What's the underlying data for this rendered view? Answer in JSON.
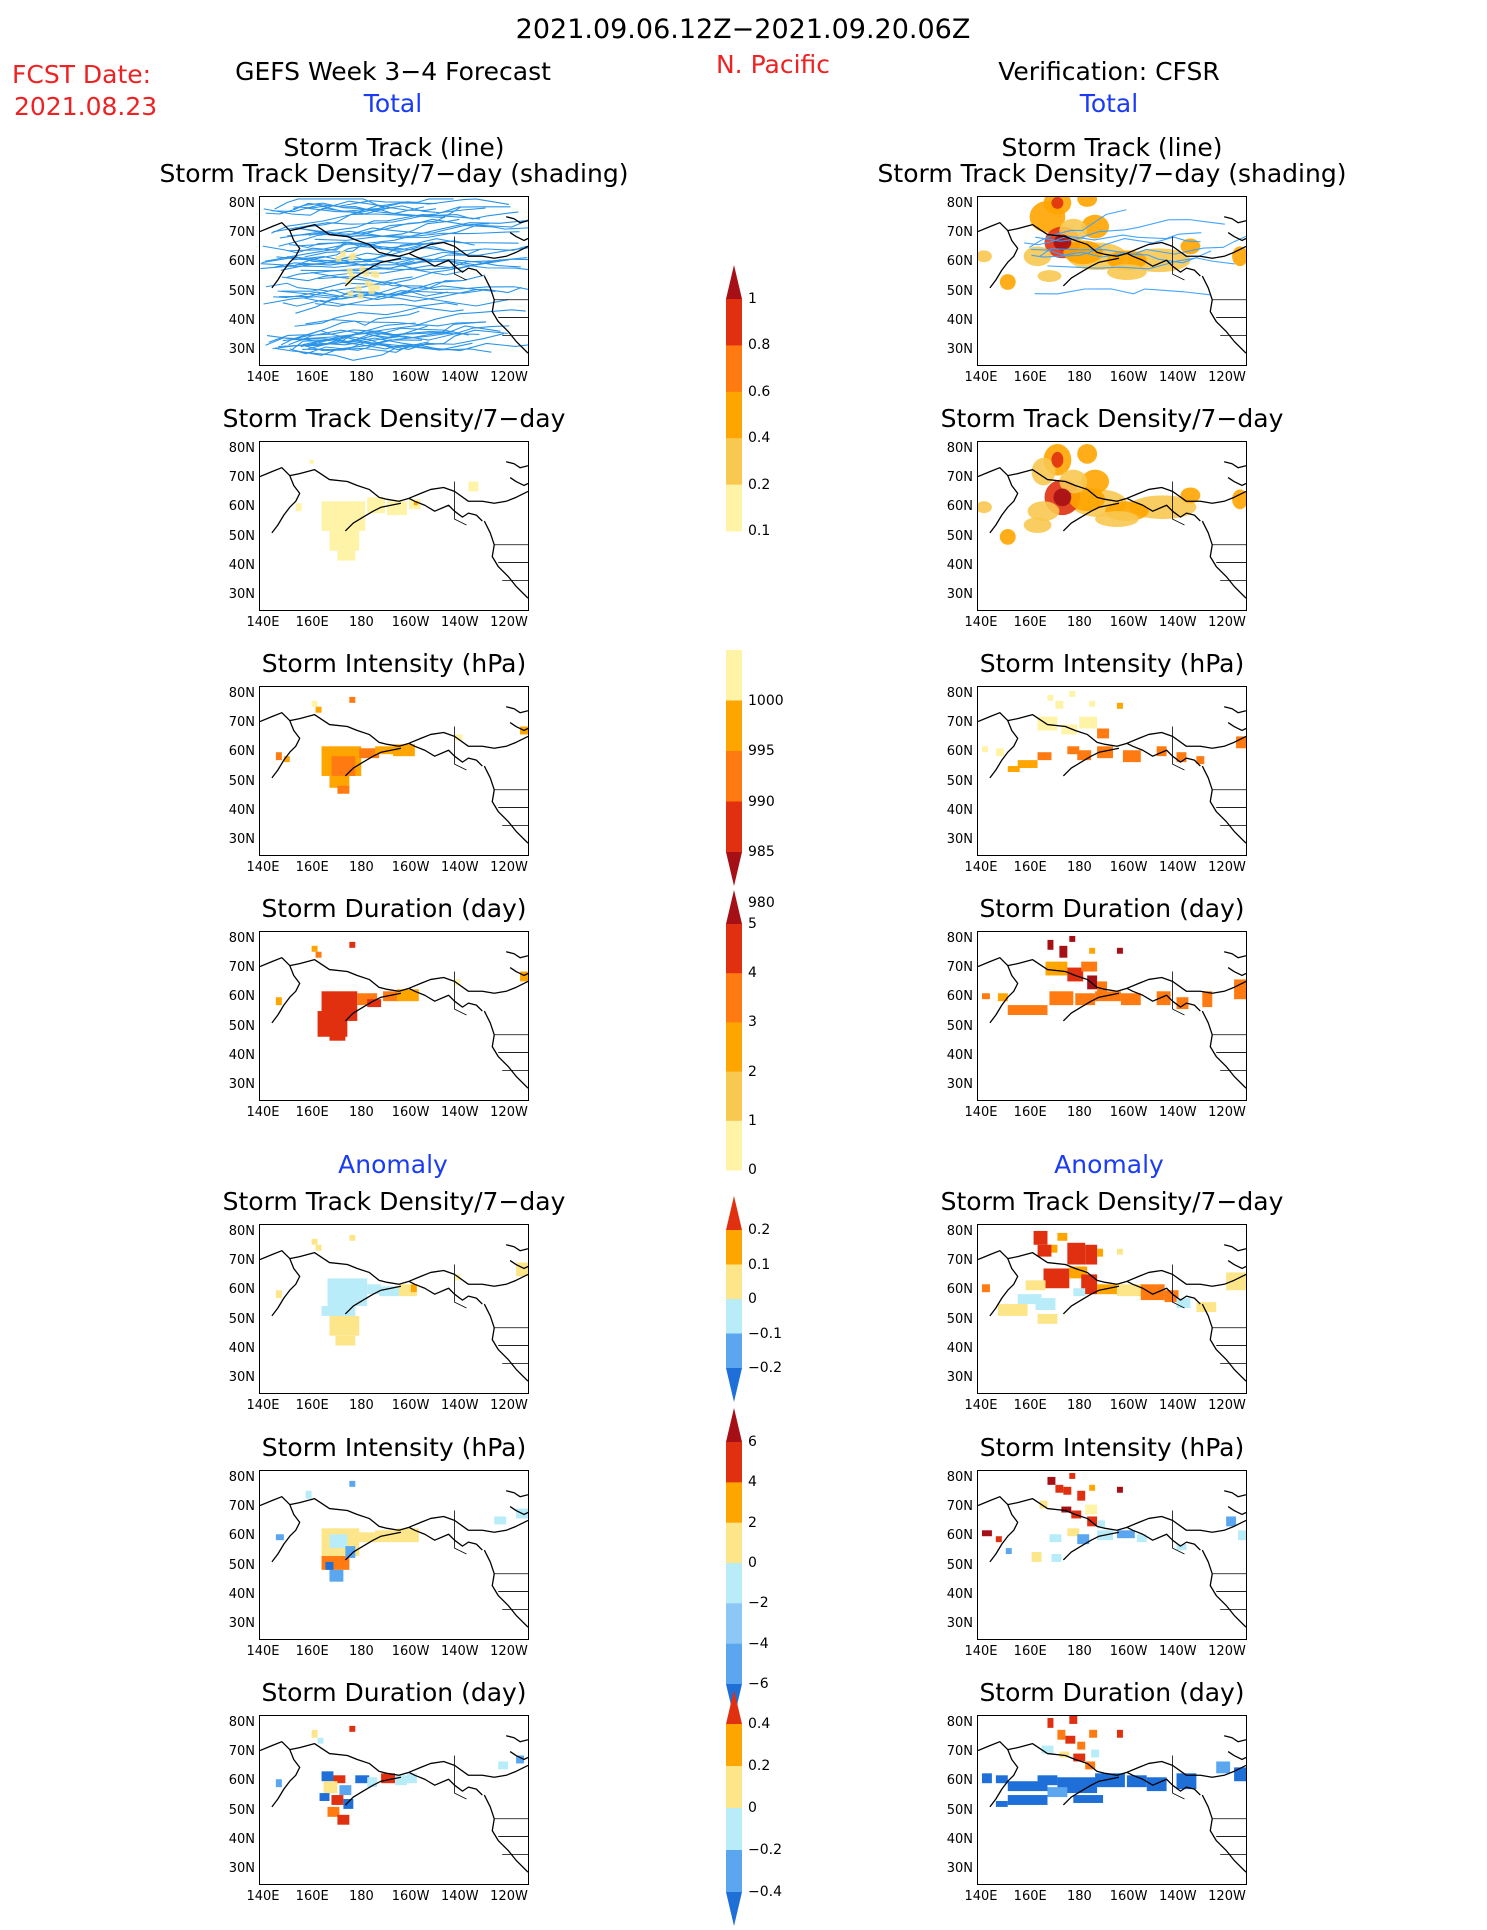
{
  "header": {
    "period": "2021.09.06.12Z−2021.09.20.06Z",
    "fcst_label": "FCST Date:",
    "fcst_date": "2021.08.23",
    "left_title": "GEFS Week 3−4 Forecast",
    "region": "N. Pacific",
    "right_title": "Verification: CFSR",
    "total_left": "Total",
    "total_right": "Total",
    "anomaly_left": "Anomaly",
    "anomaly_right": "Anomaly"
  },
  "axes": {
    "x_ticks": [
      "140E",
      "160E",
      "180",
      "160W",
      "140W",
      "120W"
    ],
    "y_ticks": [
      "80N",
      "70N",
      "60N",
      "50N",
      "40N",
      "30N"
    ]
  },
  "panels": {
    "left": [
      {
        "title1": "Storm Track (line)",
        "title2": "Storm Track Density/7−day (shading)",
        "kind": "track_fcst"
      },
      {
        "title1": "Storm Track Density/7−day",
        "kind": "density_fcst"
      },
      {
        "title1": "Storm Intensity (hPa)",
        "kind": "intensity_fcst"
      },
      {
        "title1": "Storm Duration (day)",
        "kind": "duration_fcst"
      },
      {
        "title1": "Storm Track Density/7−day",
        "kind": "density_anom_fcst"
      },
      {
        "title1": "Storm Intensity (hPa)",
        "kind": "intensity_anom_fcst"
      },
      {
        "title1": "Storm Duration (day)",
        "kind": "duration_anom_fcst"
      }
    ],
    "right": [
      {
        "title1": "Storm Track (line)",
        "title2": "Storm Track Density/7−day (shading)",
        "kind": "track_ver"
      },
      {
        "title1": "Storm Track Density/7−day",
        "kind": "density_ver"
      },
      {
        "title1": "Storm Intensity (hPa)",
        "kind": "intensity_ver"
      },
      {
        "title1": "Storm Duration (day)",
        "kind": "duration_ver"
      },
      {
        "title1": "Storm Track Density/7−day",
        "kind": "density_anom_ver"
      },
      {
        "title1": "Storm Intensity (hPa)",
        "kind": "intensity_anom_ver"
      },
      {
        "title1": "Storm Duration (day)",
        "kind": "duration_anom_ver"
      }
    ]
  },
  "colorbars": [
    {
      "name": "density",
      "labels": [
        "1",
        "0.8",
        "0.6",
        "0.4",
        "0.2",
        "0.1"
      ],
      "colors": [
        "#a50f15",
        "#e03010",
        "#ff7a10",
        "#ffa500",
        "#f8c850",
        "#fff3a8"
      ],
      "top_arrow": true,
      "bottom_arrow": false
    },
    {
      "name": "intensity",
      "labels": [
        "1000",
        "995",
        "990",
        "985",
        "980"
      ],
      "colors": [
        "#fff3a8",
        "#ffa500",
        "#ff7a10",
        "#e03010",
        "#a50f15"
      ],
      "top_arrow": false,
      "bottom_arrow": true
    },
    {
      "name": "duration",
      "labels": [
        "5",
        "4",
        "3",
        "2",
        "1",
        "0"
      ],
      "colors": [
        "#a50f15",
        "#e03010",
        "#ff7a10",
        "#ffa500",
        "#f8c850",
        "#fff3a8"
      ],
      "top_arrow": true,
      "bottom_arrow": false
    },
    {
      "name": "density_anomaly",
      "labels": [
        "0.2",
        "0.1",
        "0",
        "−0.1",
        "−0.2"
      ],
      "colors": [
        "#e03010",
        "#ffa500",
        "#fde68a",
        "#b8ecf8",
        "#5aa7f0",
        "#1e6fd8"
      ],
      "top_arrow": true,
      "bottom_arrow": true
    },
    {
      "name": "intensity_anomaly",
      "labels": [
        "6",
        "4",
        "2",
        "0",
        "−2",
        "−4",
        "−6"
      ],
      "colors": [
        "#a50f15",
        "#e03010",
        "#ffa500",
        "#fde68a",
        "#b8ecf8",
        "#8cc8f5",
        "#5aa7f0",
        "#1e6fd8"
      ],
      "top_arrow": true,
      "bottom_arrow": true
    },
    {
      "name": "duration_anomaly",
      "labels": [
        "0.4",
        "0.2",
        "0",
        "−0.2",
        "−0.4"
      ],
      "colors": [
        "#e03010",
        "#ffa500",
        "#fde68a",
        "#b8ecf8",
        "#5aa7f0",
        "#1e6fd8"
      ],
      "top_arrow": true,
      "bottom_arrow": true
    }
  ]
}
